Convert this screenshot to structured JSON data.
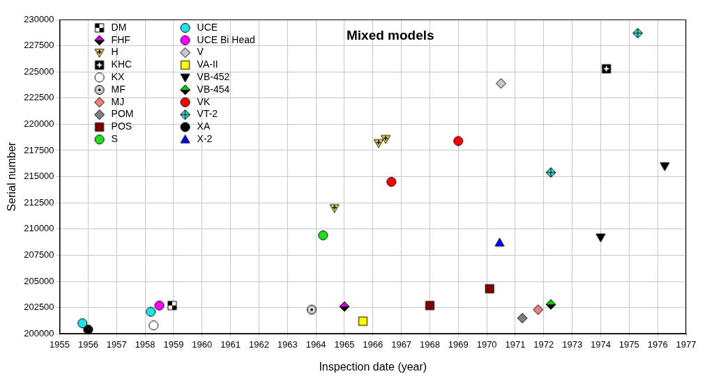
{
  "chart_data": {
    "type": "scatter",
    "title": "Mixed models",
    "x_label": "Inspection date (year)",
    "y_label": "Serial number",
    "xlim": [
      1955,
      1977
    ],
    "xticks": [
      1955,
      1956,
      1957,
      1958,
      1959,
      1960,
      1961,
      1962,
      1963,
      1964,
      1965,
      1966,
      1967,
      1968,
      1969,
      1970,
      1971,
      1972,
      1973,
      1974,
      1975,
      1976,
      1977
    ],
    "ylim": [
      200000,
      230000
    ],
    "yticks": [
      200000,
      202500,
      205000,
      207500,
      210000,
      212500,
      215000,
      217500,
      220000,
      222500,
      225000,
      227500,
      230000
    ],
    "grid": true,
    "legend": "upper left",
    "series": [
      {
        "name": "DM",
        "color": "#000000",
        "marker": "square_checker",
        "x": [
          1958.95
        ],
        "values": [
          202700
        ]
      },
      {
        "name": "FHF",
        "color": "#cc00cc",
        "marker": "diamond_split",
        "x": [
          1965.0
        ],
        "values": [
          202600
        ]
      },
      {
        "name": "H",
        "color": "#f2e35c",
        "marker": "triangle_down_plus",
        "x": [
          1964.65,
          1966.2,
          1966.45
        ],
        "values": [
          212000,
          218200,
          218600
        ]
      },
      {
        "name": "KHC",
        "color": "#000000",
        "marker": "square_plus",
        "x": [
          1974.2
        ],
        "values": [
          225300
        ]
      },
      {
        "name": "KX",
        "color": "#ffffff",
        "marker": "circle",
        "x": [
          1958.3
        ],
        "values": [
          200800
        ]
      },
      {
        "name": "MF",
        "color": "#c0c0c0",
        "marker": "circle_dot",
        "x": [
          1963.85
        ],
        "values": [
          202300
        ]
      },
      {
        "name": "MJ",
        "color": "#f08080",
        "marker": "diamond",
        "x": [
          1971.8
        ],
        "values": [
          202300
        ]
      },
      {
        "name": "POM",
        "color": "#808080",
        "marker": "diamond",
        "x": [
          1971.25
        ],
        "values": [
          201500
        ]
      },
      {
        "name": "POS",
        "color": "#800000",
        "marker": "square",
        "x": [
          1968.0,
          1970.1
        ],
        "values": [
          202700,
          204300
        ]
      },
      {
        "name": "S",
        "color": "#22dd22",
        "marker": "circle",
        "x": [
          1964.25
        ],
        "values": [
          209400
        ]
      },
      {
        "name": "UCE",
        "color": "#22e0e8",
        "marker": "circle",
        "x": [
          1955.8,
          1958.2
        ],
        "values": [
          201000,
          202100
        ]
      },
      {
        "name": "UCE Bi Head",
        "color": "#ff00ff",
        "marker": "circle",
        "x": [
          1958.5
        ],
        "values": [
          202700
        ]
      },
      {
        "name": "V",
        "color": "#c8c8c8",
        "marker": "diamond",
        "x": [
          1970.5
        ],
        "values": [
          223900
        ]
      },
      {
        "name": "VA-II",
        "color": "#ffff00",
        "marker": "square",
        "x": [
          1965.65
        ],
        "values": [
          201200
        ]
      },
      {
        "name": "VB-452",
        "color": "#000000",
        "marker": "triangle_down",
        "x": [
          1974.0,
          1976.25
        ],
        "values": [
          209200,
          216000
        ]
      },
      {
        "name": "VB-454",
        "color": "#00cc00",
        "marker": "diamond_split",
        "x": [
          1972.25
        ],
        "values": [
          202800
        ]
      },
      {
        "name": "VK",
        "color": "#ff0000",
        "marker": "circle",
        "x": [
          1966.65,
          1969.0
        ],
        "values": [
          214500,
          218400
        ]
      },
      {
        "name": "VT-2",
        "color": "#40e0d0",
        "marker": "diamond_cross",
        "x": [
          1972.25,
          1975.3
        ],
        "values": [
          215400,
          228700
        ]
      },
      {
        "name": "XA",
        "color": "#000000",
        "marker": "circle",
        "x": [
          1956.0
        ],
        "values": [
          200400
        ]
      },
      {
        "name": "X-2",
        "color": "#0000ff",
        "marker": "triangle",
        "x": [
          1970.45
        ],
        "values": [
          208700
        ]
      }
    ]
  }
}
